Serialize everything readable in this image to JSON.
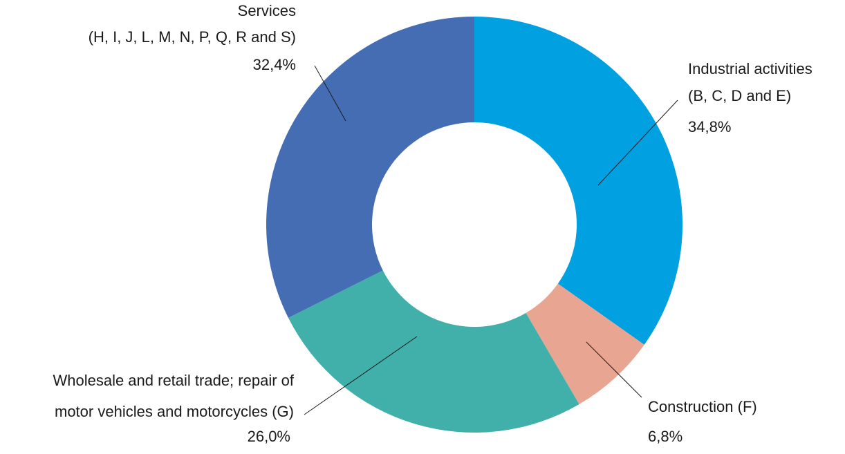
{
  "chart_data": {
    "type": "donut",
    "categories": [
      [
        "Industrial activities",
        "(B, C, D and E)"
      ],
      [
        "Construction (F)"
      ],
      [
        "Wholesale and retail trade; repair of",
        "motor vehicles and motorcycles (G)"
      ],
      [
        "Services",
        "(H, I, J, L, M, N, P, Q, R and S)"
      ]
    ],
    "values": [
      34.8,
      6.8,
      26.0,
      32.4
    ],
    "value_labels": [
      "34,8%",
      "6,8%",
      "26,0%",
      "32,4%"
    ],
    "colors": [
      "#00a0e1",
      "#e8a692",
      "#41b0aa",
      "#456db4"
    ]
  }
}
